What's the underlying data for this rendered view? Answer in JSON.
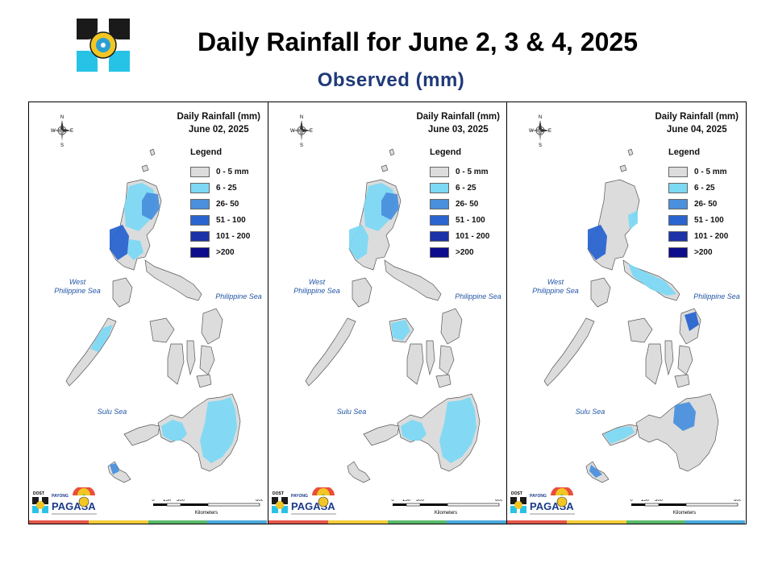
{
  "header": {
    "title": "Daily Rainfall for June 2, 3 & 4, 2025",
    "subtitle": "Observed (mm)"
  },
  "legend": {
    "title": "Legend",
    "classes": [
      {
        "label": "0 - 5 mm",
        "color": "#dcdcdc"
      },
      {
        "label": "6 - 25",
        "color": "#7dd8f3"
      },
      {
        "label": "26- 50",
        "color": "#4a90dd"
      },
      {
        "label": "51 - 100",
        "color": "#2a64cf"
      },
      {
        "label": "101 - 200",
        "color": "#1c32a8"
      },
      {
        "label": ">200",
        "color": "#0c0c8c"
      }
    ]
  },
  "labels": {
    "west_sea": "West\nPhilippine Sea",
    "philippine_sea": "Philippine Sea",
    "sulu_sea": "Sulu Sea",
    "scale_ticks": [
      "0",
      "150",
      "300",
      "600"
    ],
    "scale_unit": "Kilometers",
    "compass": {
      "n": "N",
      "s": "S",
      "e": "E",
      "w": "W"
    },
    "org_small": "DOST",
    "org_mascot": "PAYONG",
    "org_name": "PAGASA"
  },
  "panels": [
    {
      "title_line1": "Daily Rainfall (mm)",
      "title_line2": "June 02, 2025",
      "zones": {
        "luzon_north": "6 - 25",
        "ne_luzon": "26- 50",
        "west_luzon": "51 - 100",
        "central_luzon": "6 - 25",
        "palawan": "6 - 25",
        "mindanao_east": "6 - 25",
        "mindanao_west": "6 - 25",
        "tawi": "26- 50"
      }
    },
    {
      "title_line1": "Daily Rainfall (mm)",
      "title_line2": "June 03, 2025",
      "zones": {
        "luzon_north": "6 - 25",
        "ne_luzon": "26- 50",
        "west_luzon": "6 - 25",
        "panay": "6 - 25",
        "mindanao_east": "6 - 25",
        "mindanao_west": "6 - 25"
      }
    },
    {
      "title_line1": "Daily Rainfall (mm)",
      "title_line2": "June 04, 2025",
      "zones": {
        "west_luzon": "51 - 100",
        "luzon_east": "6 - 25",
        "bicol": "6 - 25",
        "samar": "51 - 100",
        "mindanao_central": "26- 50",
        "zamboanga": "6 - 25",
        "sulu": "26- 50"
      }
    }
  ]
}
